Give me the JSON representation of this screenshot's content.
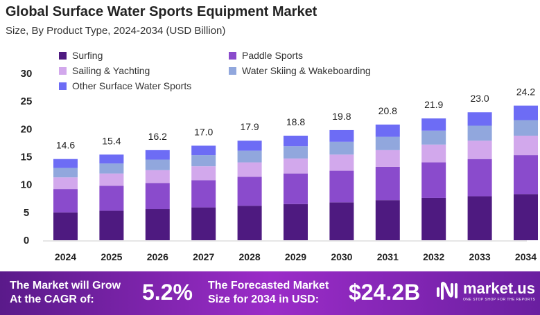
{
  "title": "Global Surface Water Sports Equipment Market",
  "subtitle": "Size, By Product Type, 2024-2034 (USD Billion)",
  "chart_data": {
    "type": "bar",
    "stacked": true,
    "categories": [
      "2024",
      "2025",
      "2026",
      "2027",
      "2028",
      "2029",
      "2030",
      "2031",
      "2032",
      "2033",
      "2034"
    ],
    "totals": [
      "14.6",
      "15.4",
      "16.2",
      "17.0",
      "17.9",
      "18.8",
      "19.8",
      "20.8",
      "21.9",
      "23.0",
      "24.2"
    ],
    "series": [
      {
        "name": "Surfing",
        "color": "#4e1a80",
        "values": [
          5.0,
          5.3,
          5.6,
          5.9,
          6.2,
          6.5,
          6.8,
          7.2,
          7.6,
          7.9,
          8.3
        ]
      },
      {
        "name": "Paddle Sports",
        "color": "#8a4bcc",
        "values": [
          4.2,
          4.5,
          4.7,
          4.9,
          5.2,
          5.5,
          5.7,
          6.0,
          6.4,
          6.7,
          7.0
        ]
      },
      {
        "name": "Sailing & Yachting",
        "color": "#d2a8ec",
        "values": [
          2.1,
          2.2,
          2.3,
          2.5,
          2.6,
          2.7,
          2.9,
          3.0,
          3.2,
          3.3,
          3.5
        ]
      },
      {
        "name": "Water Skiing & Wakeboarding",
        "color": "#91a7dd",
        "values": [
          1.7,
          1.8,
          1.9,
          2.0,
          2.1,
          2.2,
          2.3,
          2.4,
          2.5,
          2.7,
          2.8
        ]
      },
      {
        "name": "Other Surface Water Sports",
        "color": "#6d6cf5",
        "values": [
          1.6,
          1.6,
          1.7,
          1.7,
          1.8,
          1.9,
          2.1,
          2.2,
          2.2,
          2.4,
          2.6
        ]
      }
    ],
    "yticks": [
      "0",
      "5",
      "10",
      "15",
      "20",
      "25",
      "30"
    ],
    "ylim": [
      0,
      30
    ],
    "grid": false,
    "legend_placement": "top"
  },
  "footer": {
    "cagr_label_1": "The Market will Grow",
    "cagr_label_2": "At the CAGR of:",
    "cagr_value": "5.2%",
    "forecast_label_1": "The Forecasted Market",
    "forecast_label_2": "Size for 2034 in USD:",
    "forecast_value": "$24.2B",
    "logo_text": "market.us",
    "logo_tagline": "ONE STOP SHOP FOR THE REPORTS"
  }
}
